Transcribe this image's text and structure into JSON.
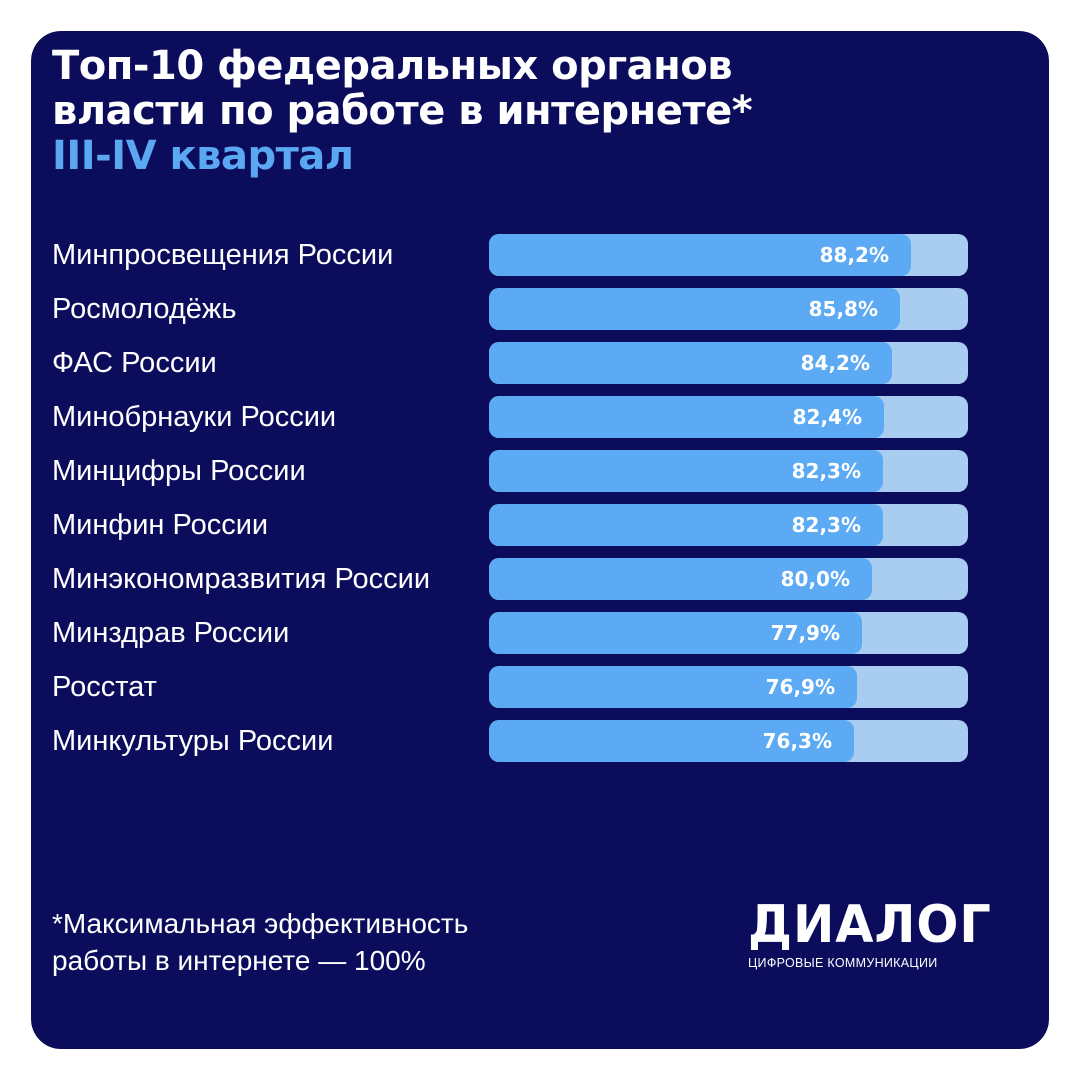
{
  "header": {
    "title_line1": "Топ-10 федеральных органов",
    "title_line2": "власти по работе в интернете*",
    "subtitle": "III-IV квартал"
  },
  "chart_data": {
    "type": "bar",
    "orientation": "horizontal",
    "title": "Топ-10 федеральных органов власти по работе в интернете*",
    "subtitle": "III-IV квартал",
    "xlim": [
      0,
      100
    ],
    "grid": false,
    "categories": [
      "Минпросвещения России",
      "Росмолодёжь",
      "ФАС России",
      "Минобрнауки России",
      "Минцифры России",
      "Минфин России",
      "Минэкономразвития России",
      "Минздрав России",
      "Росстат",
      "Минкультуры России"
    ],
    "values": [
      88.2,
      85.8,
      84.2,
      82.4,
      82.3,
      82.3,
      80.0,
      77.9,
      76.9,
      76.3
    ],
    "value_labels": [
      "88,2%",
      "85,8%",
      "84,2%",
      "82,4%",
      "82,3%",
      "82,3%",
      "80,0%",
      "77,9%",
      "76,9%",
      "76,3%"
    ],
    "colors": {
      "fill": "#5ca9f4",
      "track": "#a9cdf0",
      "background": "#0b0d5c",
      "subtitle": "#5aa8f2"
    }
  },
  "footnote": {
    "line1": "*Максимальная эффективность",
    "line2": "работы в интернете — 100%"
  },
  "logo": {
    "name": "ДИАЛОГ",
    "tagline": "ЦИФРОВЫЕ КОММУНИКАЦИИ"
  }
}
